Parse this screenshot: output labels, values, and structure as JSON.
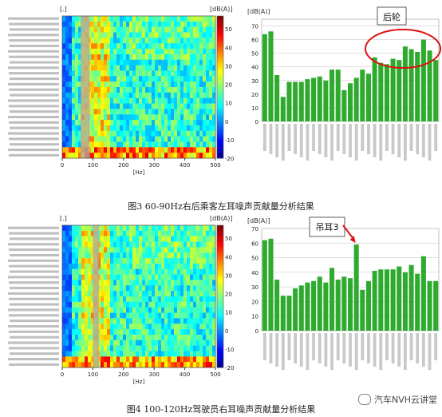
{
  "figures": [
    {
      "caption": "图3   60-90Hz右后乘客左耳噪声贡献量分析结果",
      "heatmap": {
        "corner_label": "[.]",
        "unit_label": "[dB(A)]",
        "xlabel": "[Hz]",
        "x_ticks": [
          0,
          100,
          200,
          300,
          400,
          500
        ],
        "colorbar_ticks": [
          50,
          40,
          30,
          20,
          10,
          0,
          -10,
          -20
        ],
        "colorbar_range": [
          -20,
          57
        ],
        "highlight_band_hz": [
          60,
          90
        ],
        "rows": 26
      },
      "chart_data": {
        "type": "bar",
        "unit_label": "[dB(A)]",
        "ylim": [
          0,
          75
        ],
        "yticks": [
          0,
          10,
          20,
          30,
          40,
          50,
          60,
          70
        ],
        "values": [
          64,
          66,
          34,
          18,
          29,
          29,
          29,
          31,
          32,
          33,
          30,
          38,
          38,
          23,
          28,
          32,
          38,
          35,
          47,
          43,
          42,
          46,
          45,
          55,
          53,
          51,
          60,
          52,
          45
        ],
        "color": "#2eaa2e",
        "annotation": {
          "text": "后轮"
        }
      }
    },
    {
      "caption": "图4   100-120Hz驾驶员右耳噪声贡献量分析结果",
      "heatmap": {
        "corner_label": "[.]",
        "unit_label": "[dB(A)]",
        "xlabel": "[Hz]",
        "x_ticks": [
          0,
          100,
          200,
          300,
          400,
          500
        ],
        "colorbar_ticks": [
          50,
          40,
          30,
          20,
          10,
          0,
          -10,
          -20
        ],
        "colorbar_range": [
          -20,
          57
        ],
        "highlight_band_hz": [
          100,
          120
        ],
        "rows": 26
      },
      "chart_data": {
        "type": "bar",
        "unit_label": "[dB(A)]",
        "ylim": [
          0,
          70
        ],
        "yticks": [
          0,
          10,
          20,
          30,
          40,
          50,
          60,
          70
        ],
        "values": [
          62,
          63,
          35,
          24,
          24,
          29,
          31,
          33,
          34,
          37,
          33,
          43,
          35,
          37,
          36,
          59,
          28,
          34,
          41,
          42,
          42,
          42,
          44,
          40,
          45,
          39,
          51,
          34,
          34
        ],
        "color": "#2eaa2e",
        "annotation": {
          "text": "吊耳3"
        }
      }
    }
  ],
  "watermark": {
    "text": "汽车NVH云讲堂"
  }
}
